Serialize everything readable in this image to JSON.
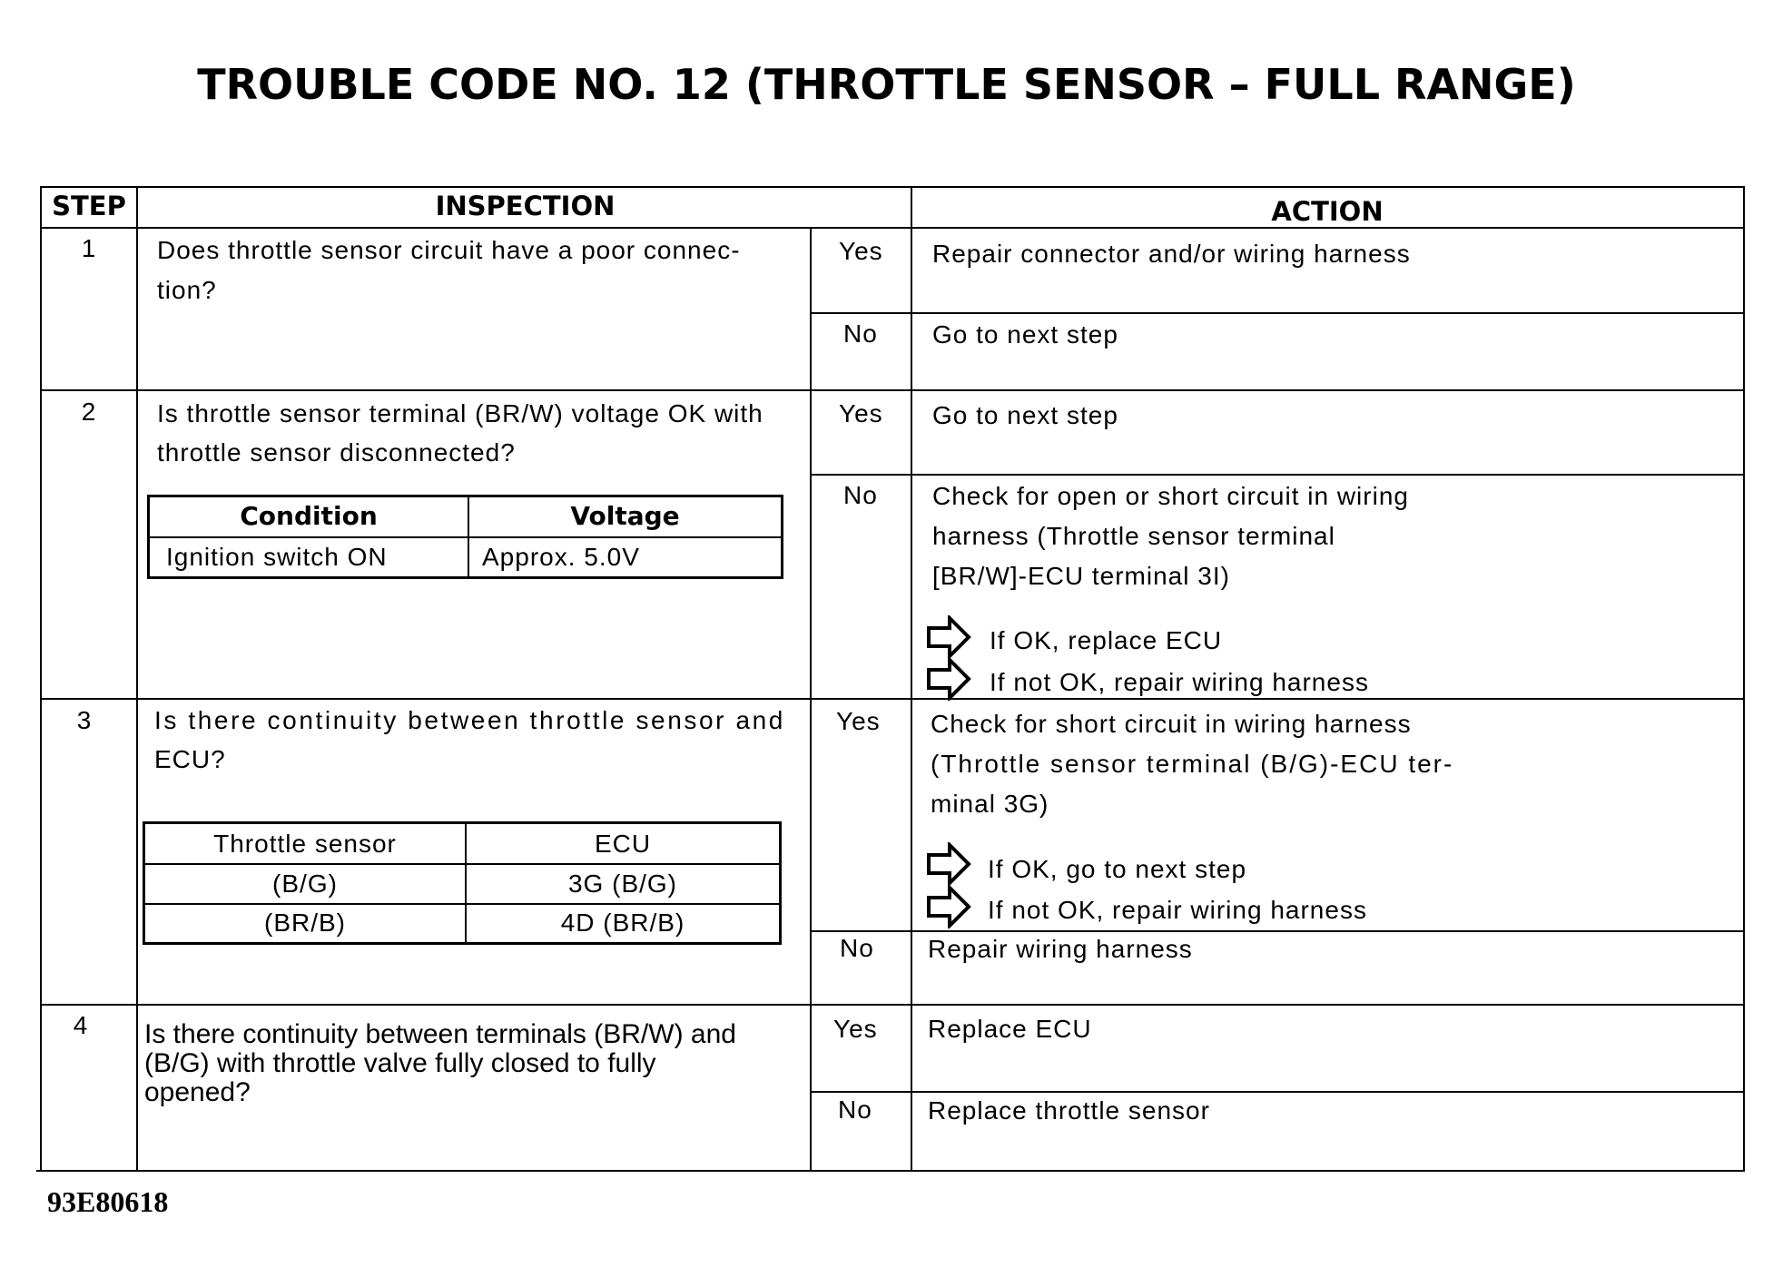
{
  "title": "TROUBLE CODE NO. 12 (THROTTLE SENSOR  –  FULL RANGE)",
  "headers": {
    "step": "STEP",
    "inspection": "INSPECTION",
    "action": "ACTION"
  },
  "steps": [
    {
      "step": "1",
      "inspection": [
        "Does throttle sensor circuit have a poor connec-",
        "tion?"
      ],
      "yes_label": "Yes",
      "no_label": "No",
      "yes_action": [
        "Repair connector and/or wiring harness"
      ],
      "no_action": [
        "Go to next step"
      ]
    },
    {
      "step": "2",
      "inspection": [
        "Is throttle sensor terminal (BR/W) voltage OK with",
        "throttle sensor disconnected?"
      ],
      "table": {
        "headers": [
          "Condition",
          "Voltage"
        ],
        "rows": [
          [
            "Ignition switch ON",
            "Approx. 5.0V"
          ]
        ]
      },
      "yes_label": "Yes",
      "no_label": "No",
      "yes_action": [
        "Go to next step"
      ],
      "no_action": [
        "Check for open or short circuit in wiring",
        "harness (Throttle sensor terminal",
        "[BR/W]-ECU terminal 3I)"
      ],
      "no_results": [
        "If OK, replace ECU",
        "If not OK, repair wiring harness"
      ]
    },
    {
      "step": "3",
      "inspection": [
        "Is there continuity between throttle sensor and",
        "ECU?"
      ],
      "table": {
        "headers": [
          "Throttle sensor",
          "ECU"
        ],
        "rows": [
          [
            "(B/G)",
            "3G (B/G)"
          ],
          [
            "(BR/B)",
            "4D (BR/B)"
          ]
        ]
      },
      "yes_label": "Yes",
      "no_label": "No",
      "yes_action": [
        "Check for short circuit in wiring harness",
        "(Throttle sensor terminal (B/G)-ECU ter-",
        "minal 3G)"
      ],
      "yes_results": [
        "If OK, go to next step",
        "If not OK, repair wiring harness"
      ],
      "no_action": [
        "Repair wiring harness"
      ]
    },
    {
      "step": "4",
      "inspection": [
        "Is there continuity between terminals (BR/W) and",
        "(B/G) with throttle valve fully closed to fully",
        "opened?"
      ],
      "yes_label": "Yes",
      "no_label": "No",
      "yes_action": [
        "Replace ECU"
      ],
      "no_action": [
        "Replace throttle sensor"
      ]
    }
  ],
  "icons": {
    "result": "outline-arrow-right-icon"
  },
  "figure_code": "93E80618"
}
